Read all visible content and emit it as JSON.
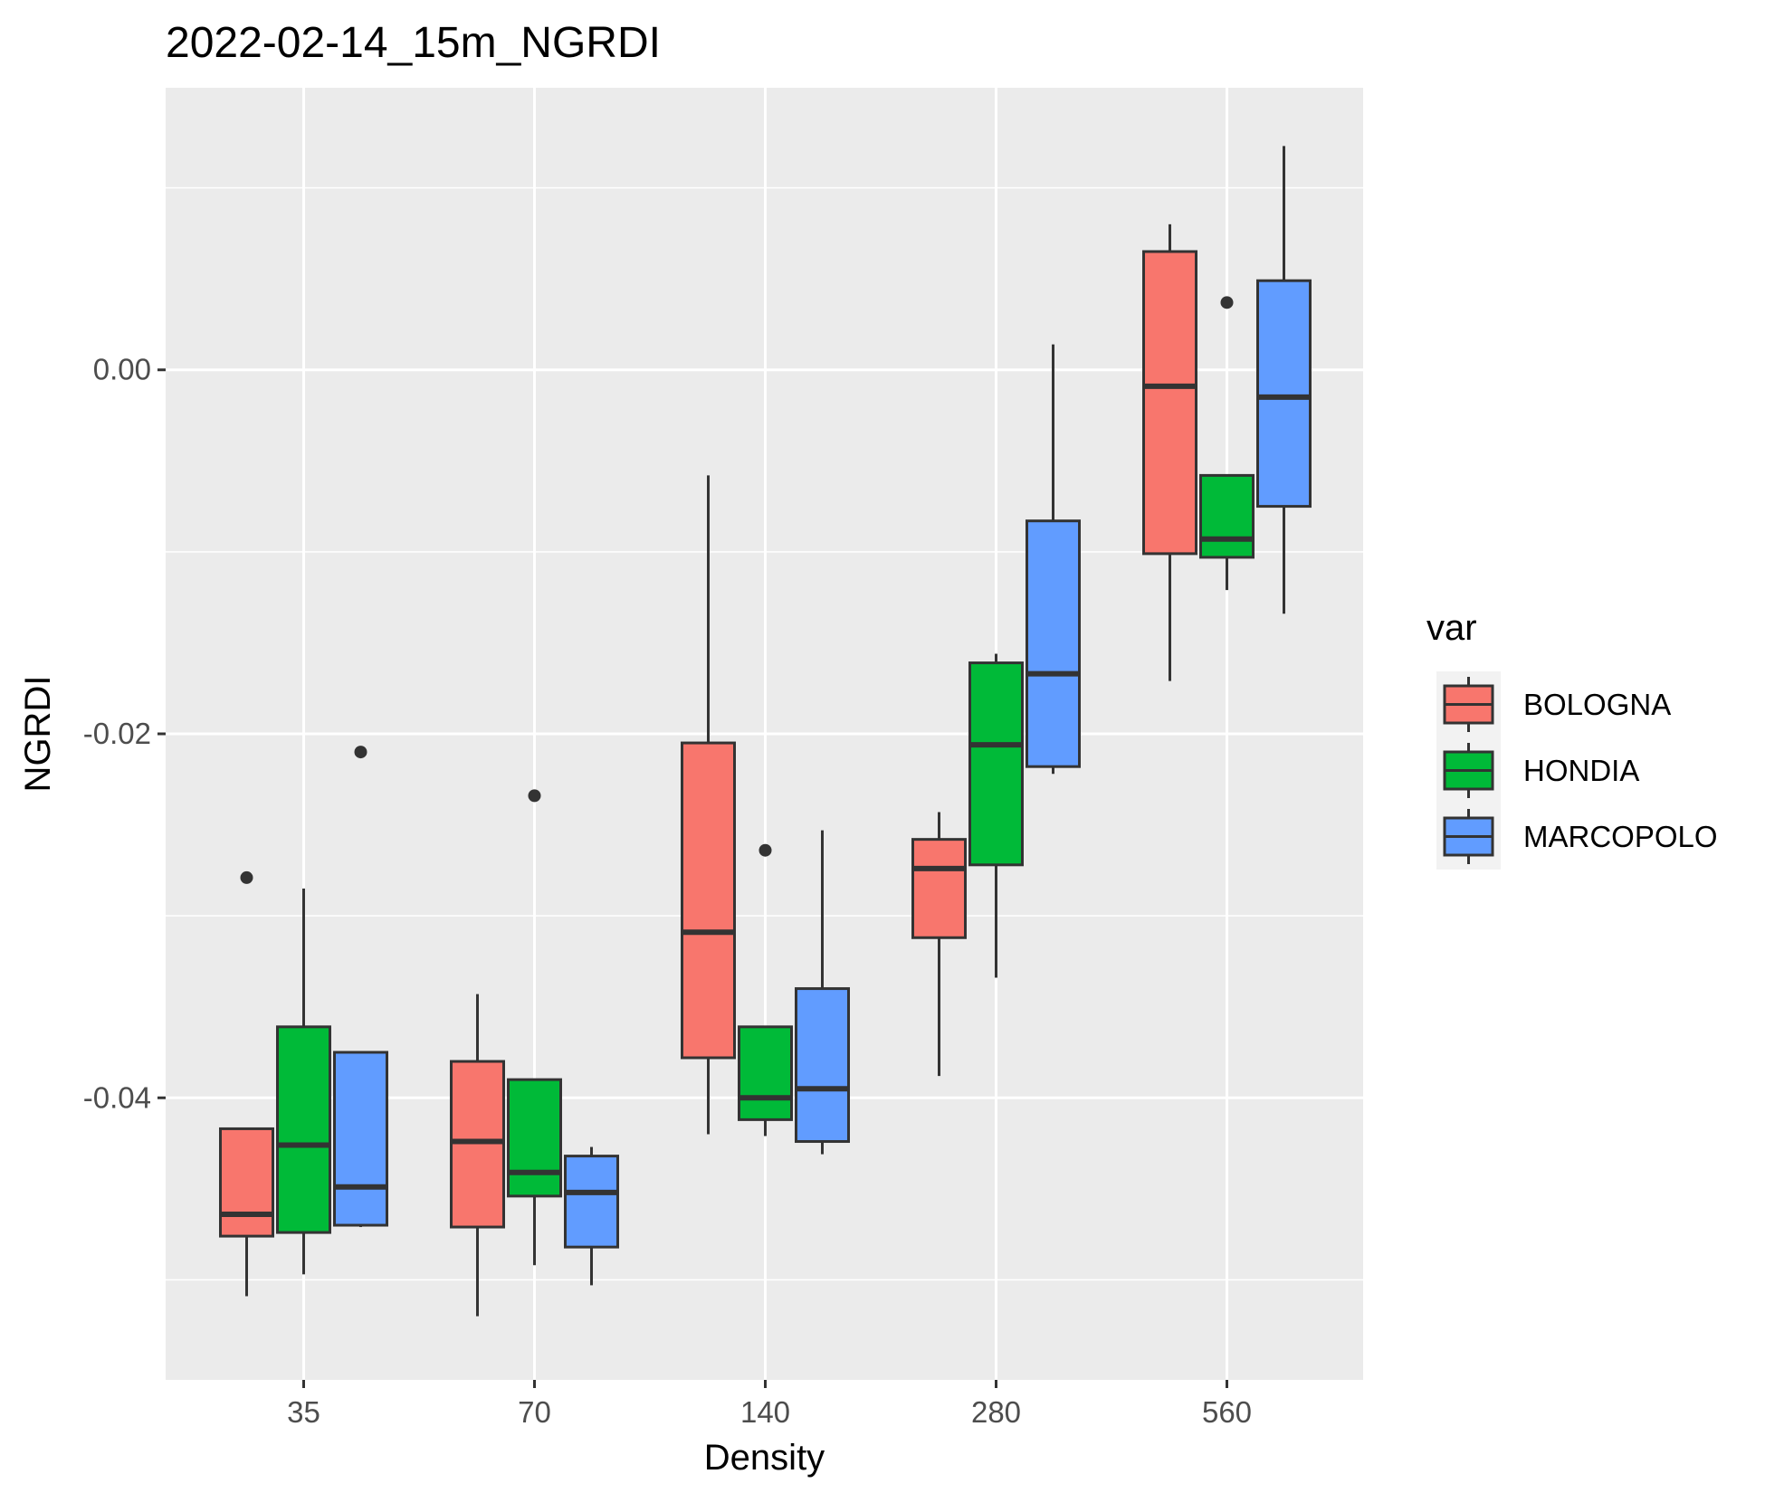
{
  "chart_data": {
    "type": "boxplot",
    "title": "2022-02-14_15m_NGRDI",
    "xlabel": "Density",
    "ylabel": "NGRDI",
    "categories": [
      "35",
      "70",
      "140",
      "280",
      "560"
    ],
    "y_ticks": [
      0.0,
      -0.02,
      -0.04
    ],
    "y_tick_labels": [
      "0.00",
      "-0.02",
      "-0.04"
    ],
    "ylim": [
      -0.0555,
      0.0155
    ],
    "grid": true,
    "legend": {
      "title": "var",
      "position": "right"
    },
    "series": [
      {
        "name": "BOLOGNA",
        "color": "#F8766D",
        "boxes": [
          {
            "whisker_low": -0.0509,
            "q1": -0.0476,
            "median": -0.0464,
            "q3": -0.0417,
            "whisker_high": -0.0417,
            "outliers": [
              -0.0279
            ]
          },
          {
            "whisker_low": -0.052,
            "q1": -0.0471,
            "median": -0.0424,
            "q3": -0.038,
            "whisker_high": -0.0343,
            "outliers": []
          },
          {
            "whisker_low": -0.042,
            "q1": -0.0378,
            "median": -0.0309,
            "q3": -0.0205,
            "whisker_high": -0.0058,
            "outliers": []
          },
          {
            "whisker_low": -0.0388,
            "q1": -0.0312,
            "median": -0.0274,
            "q3": -0.0258,
            "whisker_high": -0.0243,
            "outliers": []
          },
          {
            "whisker_low": -0.0171,
            "q1": -0.0101,
            "median": -0.0009,
            "q3": 0.0065,
            "whisker_high": 0.008,
            "outliers": []
          }
        ]
      },
      {
        "name": "HONDIA",
        "color": "#00BA38",
        "boxes": [
          {
            "whisker_low": -0.0497,
            "q1": -0.0474,
            "median": -0.0426,
            "q3": -0.0361,
            "whisker_high": -0.0285,
            "outliers": []
          },
          {
            "whisker_low": -0.0492,
            "q1": -0.0454,
            "median": -0.0441,
            "q3": -0.039,
            "whisker_high": -0.039,
            "outliers": [
              -0.0234
            ]
          },
          {
            "whisker_low": -0.0421,
            "q1": -0.0412,
            "median": -0.04,
            "q3": -0.0361,
            "whisker_high": -0.0361,
            "outliers": [
              -0.0264
            ]
          },
          {
            "whisker_low": -0.0334,
            "q1": -0.0272,
            "median": -0.0206,
            "q3": -0.0161,
            "whisker_high": -0.0156,
            "outliers": []
          },
          {
            "whisker_low": -0.0121,
            "q1": -0.0103,
            "median": -0.0093,
            "q3": -0.0058,
            "whisker_high": -0.0058,
            "outliers": [
              0.0037
            ]
          }
        ]
      },
      {
        "name": "MARCOPOLO",
        "color": "#619CFF",
        "boxes": [
          {
            "whisker_low": -0.0471,
            "q1": -0.047,
            "median": -0.0449,
            "q3": -0.0375,
            "whisker_high": -0.0375,
            "outliers": [
              -0.021
            ]
          },
          {
            "whisker_low": -0.0503,
            "q1": -0.0482,
            "median": -0.0452,
            "q3": -0.0432,
            "whisker_high": -0.0427,
            "outliers": []
          },
          {
            "whisker_low": -0.0431,
            "q1": -0.0424,
            "median": -0.0395,
            "q3": -0.034,
            "whisker_high": -0.0253,
            "outliers": []
          },
          {
            "whisker_low": -0.0222,
            "q1": -0.0218,
            "median": -0.0167,
            "q3": -0.0083,
            "whisker_high": 0.0014,
            "outliers": []
          },
          {
            "whisker_low": -0.0134,
            "q1": -0.0075,
            "median": -0.0015,
            "q3": 0.0049,
            "whisker_high": 0.0123,
            "outliers": []
          }
        ]
      }
    ]
  }
}
